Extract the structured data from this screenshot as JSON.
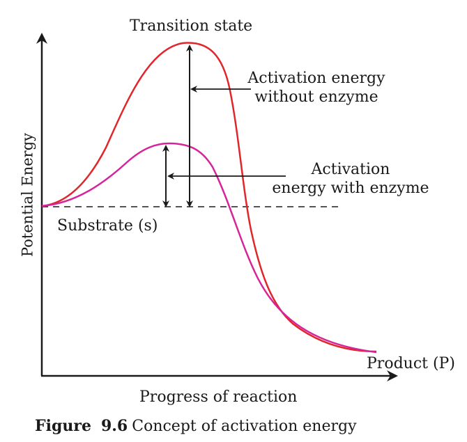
{
  "diagram": {
    "title_label": "Transition state",
    "activation_without": [
      "Activation energy",
      "without enzyme"
    ],
    "activation_with": [
      "Activation",
      "energy with enzyme"
    ],
    "substrate_label": "Substrate (s)",
    "product_label": "Product (P)",
    "x_axis_label": "Progress of reaction",
    "y_axis_label": "Potential Energy",
    "curves": [
      {
        "role": "without_enzyme",
        "color": "#e0262b"
      },
      {
        "role": "with_enzyme",
        "color": "#d6239a"
      }
    ],
    "arrow_color": "#1a1a1a"
  },
  "caption": {
    "label": "Figure",
    "number": "9.6",
    "text": "Concept of activation energy"
  }
}
